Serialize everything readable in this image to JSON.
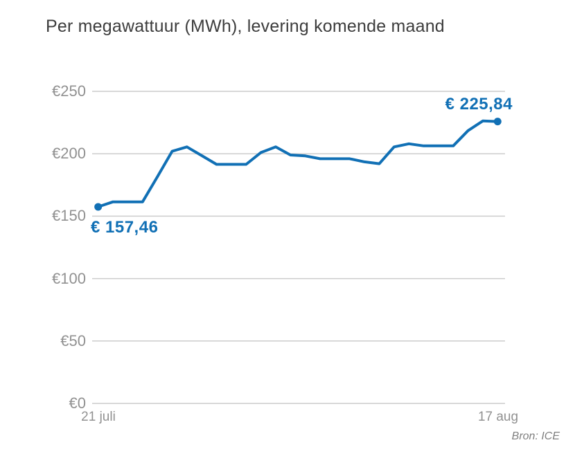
{
  "page": {
    "title": "Per megawattuur (MWh), levering komende maand",
    "source": "Bron: ICE"
  },
  "chart_data": {
    "type": "line",
    "title": "Per megawattuur (MWh), levering komende maand",
    "unit": "EUR per megawattuur",
    "x": [
      "21 juli",
      "22 juli",
      "23 juli",
      "24 juli",
      "25 juli",
      "26 juli",
      "27 juli",
      "28 juli",
      "29 juli",
      "30 juli",
      "31 juli",
      "1 aug",
      "2 aug",
      "3 aug",
      "4 aug",
      "5 aug",
      "6 aug",
      "7 aug",
      "8 aug",
      "9 aug",
      "10 aug",
      "11 aug",
      "12 aug",
      "13 aug",
      "14 aug",
      "15 aug",
      "16 aug",
      "17 aug"
    ],
    "values": [
      157.46,
      161.5,
      161.5,
      161.5,
      181.5,
      202,
      205.5,
      198.5,
      191.5,
      191.5,
      191.5,
      201,
      205.5,
      199,
      198.3,
      196,
      196,
      196,
      193.5,
      192,
      205.5,
      208,
      206.3,
      206.3,
      206.3,
      218.5,
      226.3,
      225.84
    ],
    "first_value": 157.46,
    "last_value": 225.84,
    "annotations": [
      {
        "label": "€ 157,46",
        "point": "first"
      },
      {
        "label": "€ 225,84",
        "point": "last"
      }
    ],
    "ylim": [
      0,
      250
    ],
    "yticks": [
      0,
      50,
      100,
      150,
      200,
      250
    ],
    "ytick_labels": [
      "€0",
      "€50",
      "€100",
      "€150",
      "€200",
      "€250"
    ],
    "xtick_labels": [
      "21 juli",
      "17 aug"
    ],
    "grid": "horizontal",
    "legend": "none",
    "line_color": "#1170b5",
    "grid_color": "#cccccc",
    "tick_color": "#919191"
  }
}
